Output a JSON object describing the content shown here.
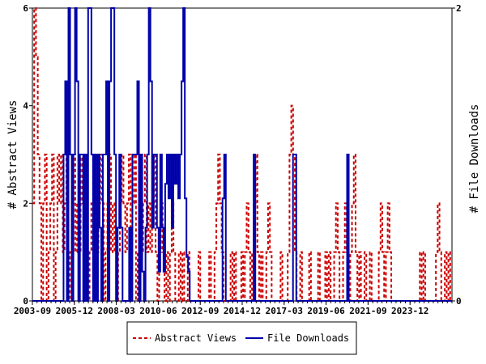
{
  "chart_data": {
    "type": "line",
    "y_left_label": "# Abstract Views",
    "y_right_label": "# File Downloads",
    "y_left_ticks": [
      "0",
      "2",
      "4",
      "6"
    ],
    "y_left_range": [
      0,
      6
    ],
    "y_right_ticks": [
      "0",
      "2"
    ],
    "y_right_range": [
      0,
      2
    ],
    "x_ticks": [
      "2003-09",
      "2005-12",
      "2008-03",
      "2010-06",
      "2012-09",
      "2014-12",
      "2017-03",
      "2019-06",
      "2021-09",
      "2023-12"
    ],
    "x_range": [
      "2003-09",
      "2026-03"
    ],
    "grid": false,
    "legend_position": "bottom-center",
    "colors": {
      "abstract": "#cc0000",
      "downloads": "#0000aa"
    },
    "series": [
      {
        "name": "Abstract Views",
        "axis": "left",
        "style": "dashed",
        "values": [
          2,
          6,
          5,
          3,
          2,
          0,
          2,
          3,
          0,
          1,
          2,
          3,
          0,
          1,
          3,
          2,
          3,
          1,
          2,
          3,
          0,
          1,
          2,
          3,
          1,
          2,
          1,
          3,
          2,
          1,
          2,
          0,
          1,
          2,
          3,
          2,
          1,
          2,
          3,
          2,
          0,
          1,
          2,
          3,
          1,
          2,
          1,
          0,
          1,
          2,
          3,
          2,
          1,
          2,
          3,
          1,
          2,
          3,
          0,
          1,
          2,
          1,
          2,
          3,
          1,
          2,
          1,
          2,
          3,
          1,
          0,
          1,
          2,
          1,
          0,
          1,
          0,
          1,
          2,
          1,
          0,
          0,
          1,
          0,
          1,
          0,
          0,
          1,
          0,
          0,
          0,
          0,
          0,
          1,
          0,
          0,
          0,
          0,
          0,
          1,
          0,
          0,
          1,
          2,
          3,
          2,
          1,
          0,
          0,
          0,
          0,
          1,
          0,
          1,
          0,
          0,
          0,
          1,
          0,
          1,
          2,
          1,
          0,
          1,
          2,
          3,
          1,
          0,
          1,
          0,
          0,
          1,
          2,
          1,
          0,
          0,
          0,
          0,
          0,
          1,
          0,
          0,
          0,
          1,
          3,
          4,
          3,
          1,
          0,
          0,
          1,
          0,
          0,
          0,
          0,
          1,
          0,
          0,
          0,
          0,
          1,
          0,
          0,
          0,
          1,
          0,
          1,
          0,
          0,
          1,
          2,
          1,
          0,
          0,
          1,
          2,
          1,
          0,
          1,
          2,
          3,
          1,
          0,
          1,
          0,
          0,
          1,
          0,
          0,
          1,
          0,
          0,
          0,
          0,
          1,
          2,
          1,
          0,
          1,
          2,
          1,
          0,
          0,
          0,
          0,
          0,
          0,
          0,
          0,
          0,
          0,
          0,
          0,
          0,
          0,
          0,
          0,
          1,
          0,
          1,
          0,
          0,
          0,
          0,
          0,
          0,
          1,
          2,
          1,
          0,
          0,
          1,
          0,
          1,
          0
        ]
      },
      {
        "name": "File Downloads",
        "axis": "right",
        "style": "solid",
        "values": [
          0,
          0,
          0,
          0,
          0,
          0,
          0,
          0,
          0,
          0,
          0,
          0,
          0,
          0,
          0,
          0,
          0,
          0,
          0,
          1,
          1.5,
          0,
          2,
          1,
          0,
          1,
          2,
          1.5,
          0,
          1,
          1,
          0,
          1,
          0,
          2,
          2,
          1,
          0,
          1,
          0,
          1,
          0.5,
          0,
          1,
          1,
          1.5,
          0,
          1.5,
          2,
          2,
          1,
          0,
          0.5,
          1,
          0.5,
          0,
          0,
          0,
          0,
          0.5,
          0,
          1,
          1,
          1,
          1.5,
          0,
          1,
          0.2,
          0,
          0.5,
          1,
          2,
          1.5,
          0.5,
          1,
          1,
          0.5,
          0.2,
          1,
          0.5,
          0.2,
          0.8,
          1,
          0.7,
          1,
          0.5,
          1,
          0.8,
          1,
          0.7,
          1,
          1.5,
          2,
          0.7,
          0.3,
          0.2,
          0,
          0,
          0,
          0,
          0,
          0,
          0,
          0,
          0,
          0,
          0,
          0,
          0,
          0,
          0,
          0,
          0,
          0,
          0,
          0,
          0.7,
          1,
          0,
          0,
          0,
          0,
          0,
          0,
          0,
          0,
          0,
          0,
          0,
          0,
          0,
          0,
          0,
          0,
          0,
          1,
          0,
          0,
          0,
          0,
          0,
          0,
          0,
          0,
          0,
          0,
          0,
          0,
          0,
          0,
          0,
          0,
          0,
          0,
          0,
          0,
          0,
          0,
          0,
          1,
          1,
          0,
          0,
          0,
          0,
          0,
          0,
          0,
          0,
          0,
          0,
          0,
          0,
          0,
          0,
          0,
          0,
          0,
          0,
          0,
          0,
          0,
          0,
          0,
          0,
          0,
          0,
          0,
          0,
          0,
          0,
          0,
          1,
          0,
          0,
          0,
          0,
          0,
          0,
          0,
          0,
          0,
          0,
          0,
          0,
          0,
          0,
          0,
          0,
          0,
          0,
          0,
          0,
          0,
          0,
          0,
          0,
          0,
          0,
          0,
          0,
          0,
          0,
          0,
          0,
          0,
          0,
          0,
          0,
          0,
          0,
          0,
          0,
          0,
          0,
          0,
          0,
          0,
          0,
          0,
          0,
          0,
          0,
          0,
          0,
          0,
          0,
          0,
          0,
          0,
          0,
          0,
          0,
          0,
          0,
          0
        ]
      }
    ]
  }
}
